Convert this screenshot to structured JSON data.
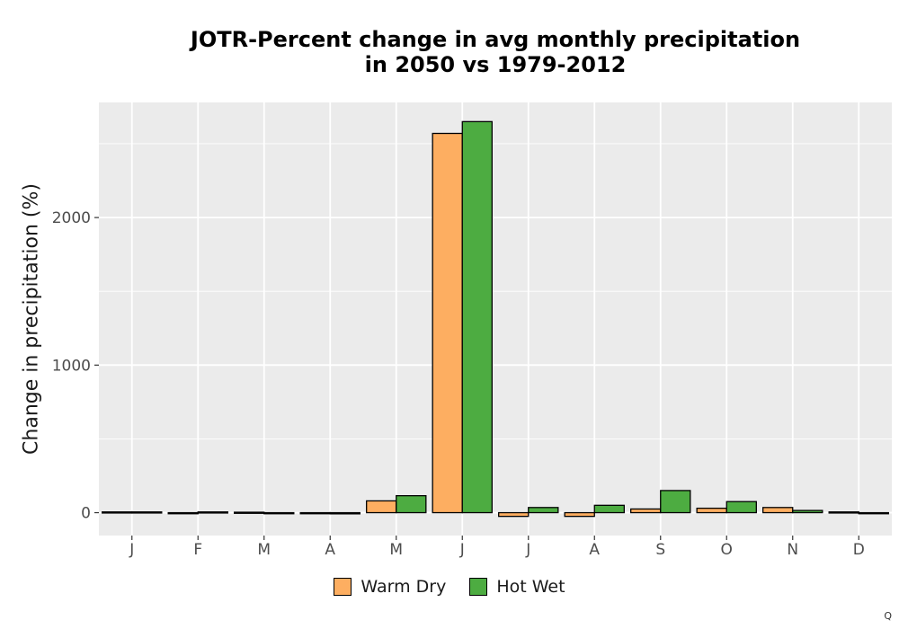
{
  "chart_data": {
    "type": "bar",
    "title_line1": "JOTR-Percent change in avg monthly precipitation",
    "title_line2": "in 2050 vs 1979-2012",
    "xlabel": "",
    "ylabel": "Change in precipitation (%)",
    "categories": [
      "J",
      "F",
      "M",
      "A",
      "M",
      "J",
      "J",
      "A",
      "S",
      "O",
      "N",
      "D"
    ],
    "yticks": [
      0,
      1000,
      2000
    ],
    "ylim": [
      -155,
      2780
    ],
    "grid": true,
    "legend_position": "bottom",
    "series": [
      {
        "name": "Warm Dry",
        "color": "#FDAE61",
        "values": [
          5,
          -5,
          3,
          -5,
          80,
          2570,
          -25,
          -25,
          25,
          30,
          35,
          5
        ]
      },
      {
        "name": "Hot Wet",
        "color": "#4DAC41",
        "values": [
          5,
          5,
          -5,
          -8,
          115,
          2650,
          35,
          50,
          150,
          75,
          15,
          -3
        ]
      }
    ]
  },
  "corner_mark": "Q"
}
